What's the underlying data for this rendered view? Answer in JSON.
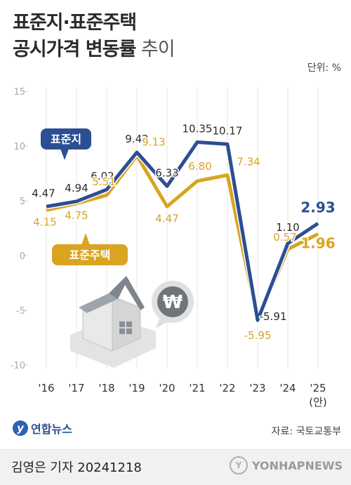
{
  "header": {
    "title_line1": "표준지·표준주택",
    "title_line2_bold": "공시가격 변동률",
    "title_line2_light": " 추이",
    "unit": "단위: %"
  },
  "footer": {
    "logo_text": "연합뉴스",
    "source": "자료: 국토교통부",
    "credit": "김영은 기자  20241218",
    "watermark": "YONHAPNEWS"
  },
  "colors": {
    "land": "#2c4f93",
    "house": "#d9a420",
    "axis_text": "#aaaaaa",
    "grid": "#e6e6e6"
  },
  "chart_data": {
    "type": "line",
    "categories": [
      "'16",
      "'17",
      "'18",
      "'19",
      "'20",
      "'21",
      "'22",
      "'23",
      "'24",
      "'25"
    ],
    "category_note": "(안)",
    "ylim": [
      -10,
      15
    ],
    "yticks": [
      -10,
      -5,
      0,
      5,
      10,
      15
    ],
    "grid": "vertical",
    "series": [
      {
        "name": "표준지",
        "values": [
          4.47,
          4.94,
          6.02,
          9.42,
          6.33,
          10.35,
          10.17,
          -5.91,
          1.1,
          2.93
        ],
        "labels": [
          "4.47",
          "4.94",
          "6.02",
          "9.42",
          "6.33",
          "10.35",
          "10.17",
          "-5.91",
          "1.10",
          "2.93"
        ]
      },
      {
        "name": "표준주택",
        "values": [
          4.15,
          4.75,
          5.51,
          9.13,
          4.47,
          6.8,
          7.34,
          -5.95,
          0.57,
          1.96
        ],
        "labels": [
          "4.15",
          "4.75",
          "5.51",
          "9.13",
          "4.47",
          "6.80",
          "7.34",
          "-5.95",
          "0.57",
          "1.96"
        ]
      }
    ]
  }
}
